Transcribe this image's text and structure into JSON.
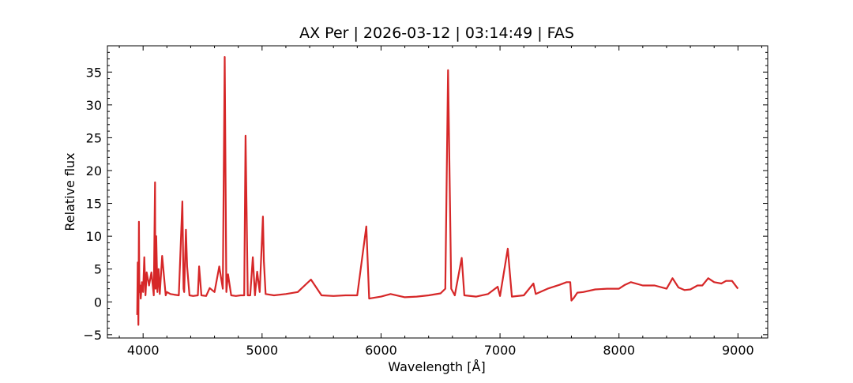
{
  "chart_data": {
    "type": "line",
    "title": "AX Per | 2026-03-12 | 03:14:49 | FAS",
    "xlabel": "Wavelength [Å]",
    "ylabel": "Relative flux",
    "xlim": [
      3700,
      9250
    ],
    "ylim": [
      -5.5,
      39
    ],
    "x_ticks": [
      4000,
      5000,
      6000,
      7000,
      8000,
      9000
    ],
    "y_ticks": [
      -5,
      0,
      5,
      10,
      15,
      20,
      25,
      30,
      35
    ],
    "x_minor_step": 200,
    "y_minor_step": 1,
    "grid": false,
    "legend": "none",
    "series": [
      {
        "color": "#d62728",
        "x": [
          3950,
          3955,
          3960,
          3965,
          3968,
          3970,
          3975,
          3980,
          3990,
          4000,
          4010,
          4020,
          4030,
          4050,
          4070,
          4090,
          4100,
          4102,
          4105,
          4110,
          4120,
          4130,
          4140,
          4160,
          4190,
          4200,
          4230,
          4260,
          4300,
          4330,
          4340,
          4345,
          4360,
          4370,
          4390,
          4420,
          4460,
          4471,
          4490,
          4530,
          4560,
          4600,
          4640,
          4670,
          4686,
          4700,
          4714,
          4740,
          4780,
          4820,
          4850,
          4861,
          4880,
          4900,
          4922,
          4940,
          4959,
          4980,
          5007,
          5015,
          5030,
          5100,
          5200,
          5300,
          5411,
          5500,
          5600,
          5700,
          5800,
          5876,
          5900,
          6000,
          6080,
          6200,
          6300,
          6400,
          6500,
          6540,
          6563,
          6590,
          6620,
          6678,
          6700,
          6800,
          6900,
          6980,
          7000,
          7065,
          7100,
          7200,
          7281,
          7300,
          7400,
          7500,
          7560,
          7590,
          7600,
          7620,
          7650,
          7700,
          7800,
          7900,
          8000,
          8050,
          8100,
          8200,
          8300,
          8400,
          8450,
          8500,
          8550,
          8600,
          8660,
          8700,
          8750,
          8800,
          8860,
          8900,
          8950,
          9000
        ],
        "y": [
          -2,
          6,
          -3.5,
          12.2,
          3,
          1.5,
          2.5,
          0.5,
          3,
          1.5,
          6.8,
          1,
          4.5,
          2.5,
          4.5,
          1,
          18.2,
          5,
          2,
          10,
          1.5,
          5,
          1.2,
          7,
          1,
          1.5,
          1.2,
          1.1,
          1,
          15.3,
          2,
          1.5,
          11,
          5.4,
          1,
          0.9,
          1,
          5.4,
          1,
          0.9,
          2.1,
          1.5,
          5.4,
          2,
          37.3,
          1.5,
          4.2,
          1,
          0.9,
          1,
          1,
          25.3,
          1,
          1,
          6.8,
          1,
          4.6,
          1.5,
          13,
          6.2,
          1.2,
          1,
          1.2,
          1.5,
          3.4,
          1,
          0.9,
          1,
          1,
          11.5,
          0.5,
          0.8,
          1.2,
          0.7,
          0.8,
          1,
          1.3,
          2,
          35.3,
          2,
          1,
          6.7,
          1,
          0.8,
          1.2,
          2.3,
          0.9,
          8.1,
          0.8,
          1,
          2.8,
          1.2,
          2,
          2.6,
          3,
          3,
          0.2,
          0.6,
          1.4,
          1.5,
          1.9,
          2,
          2,
          2.6,
          3,
          2.5,
          2.5,
          2,
          3.6,
          2.2,
          1.8,
          1.9,
          2.5,
          2.5,
          3.6,
          3,
          2.8,
          3.2,
          3.2,
          2
        ]
      }
    ]
  }
}
